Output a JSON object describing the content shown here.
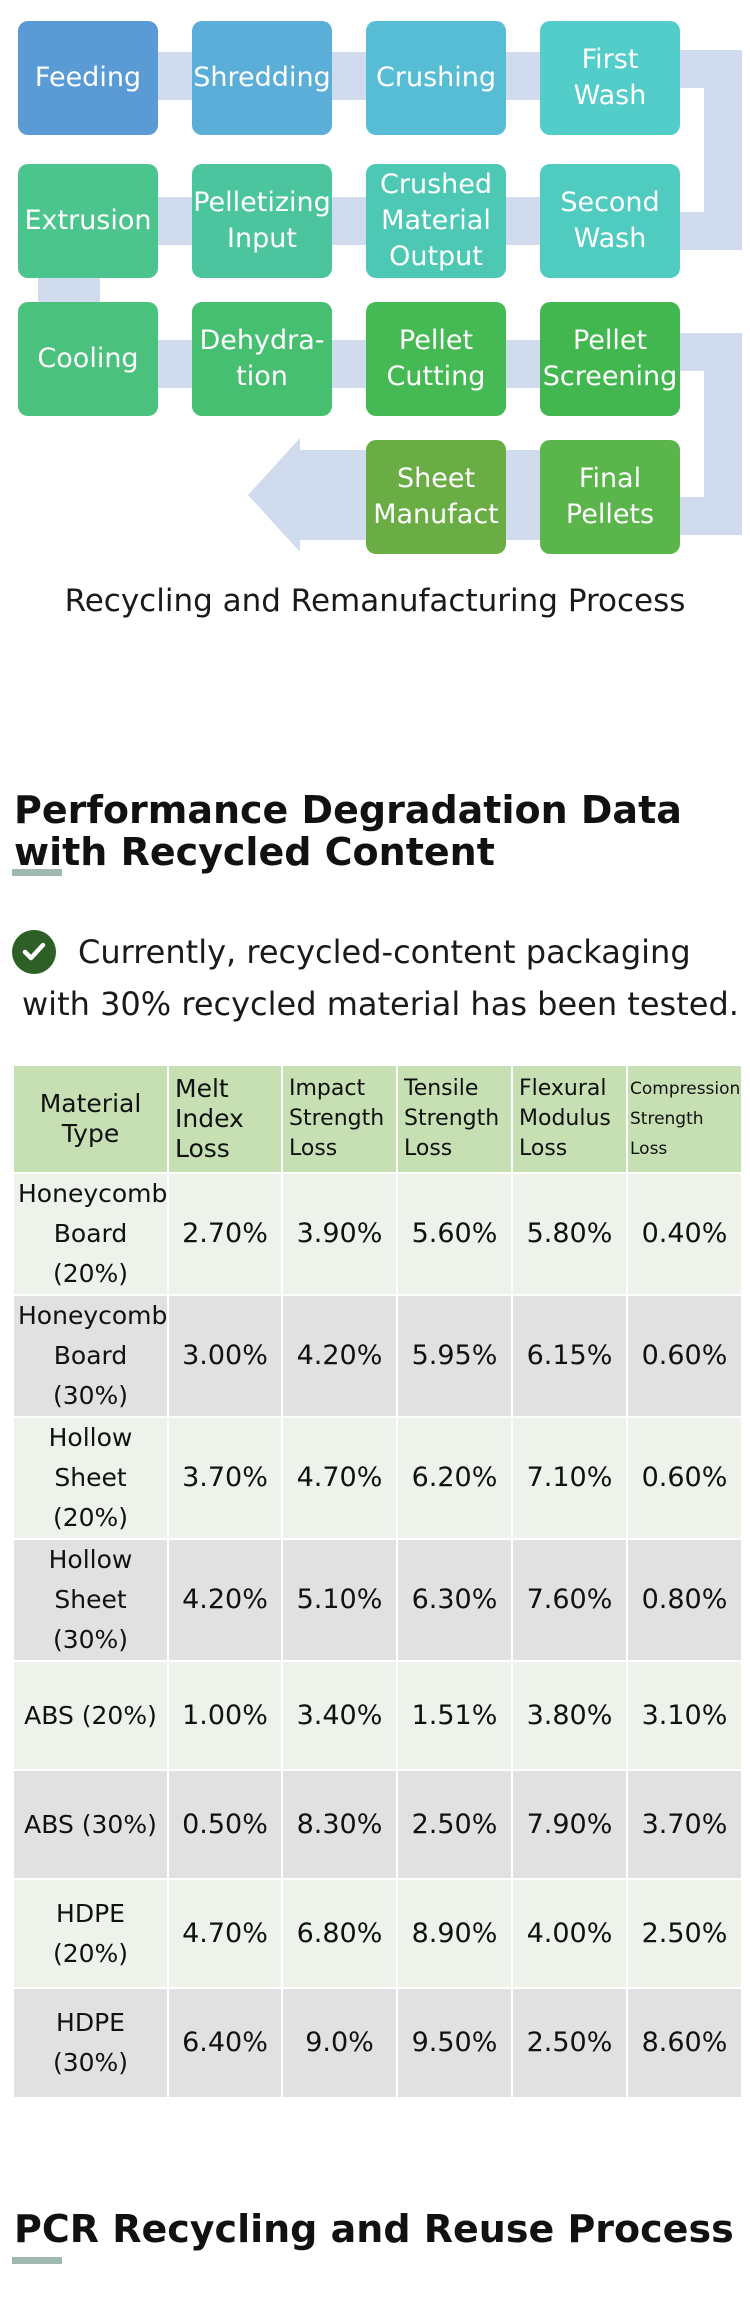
{
  "flow": {
    "steps": [
      {
        "label": "Feeding",
        "color": "#5b9bd5"
      },
      {
        "label": "Shredding",
        "color": "#5aaed8"
      },
      {
        "label": "Crushing",
        "color": "#57bdd5"
      },
      {
        "label": "First Wash",
        "color": "#52cdca"
      },
      {
        "label": "Extrusion",
        "color": "#4cc48e"
      },
      {
        "label": "Pelletizing\nInput",
        "color": "#4cc59e"
      },
      {
        "label": "Crushed\nMaterial\nOutput",
        "color": "#4dc8b4"
      },
      {
        "label": "Second\nWash",
        "color": "#4fcbc0"
      },
      {
        "label": "Cooling",
        "color": "#4ac27e"
      },
      {
        "label": "Dehydra-\ntion",
        "color": "#46bf71"
      },
      {
        "label": "Pellet\nCutting",
        "color": "#45b954"
      },
      {
        "label": "Pellet\nScreening",
        "color": "#43b74f"
      },
      {
        "label": "Sheet\nManufact",
        "color": "#6aad44"
      },
      {
        "label": "Final\nPellets",
        "color": "#5ab54a"
      }
    ],
    "connector_color": "#d0dcee",
    "caption": "Recycling and Remanufacturing Process"
  },
  "section1": {
    "title_line1": "Performance Degradation Data",
    "title_line2": "with Recycled Content"
  },
  "note": {
    "line1": "Currently, recycled-content packaging",
    "line2": "with 30% recycled material has been tested."
  },
  "table": {
    "headers": [
      "Material\nType",
      "Melt\nIndex\nLoss",
      "Impact\nStrength\nLoss",
      "Tensile\nStrength\nLoss",
      "Flexural\nModulus\nLoss",
      "Compression\nStrength\nLoss"
    ],
    "rows": [
      [
        "Honeycomb\nBoard (20%)",
        "2.70%",
        "3.90%",
        "5.60%",
        "5.80%",
        "0.40%"
      ],
      [
        "Honeycomb\nBoard (30%)",
        "3.00%",
        "4.20%",
        "5.95%",
        "6.15%",
        "0.60%"
      ],
      [
        "Hollow\nSheet (20%)",
        "3.70%",
        "4.70%",
        "6.20%",
        "7.10%",
        "0.60%"
      ],
      [
        "Hollow\nSheet (30%)",
        "4.20%",
        "5.10%",
        "6.30%",
        "7.60%",
        "0.80%"
      ],
      [
        "ABS (20%)",
        "1.00%",
        "3.40%",
        "1.51%",
        "3.80%",
        "3.10%"
      ],
      [
        "ABS (30%)",
        "0.50%",
        "8.30%",
        "2.50%",
        "7.90%",
        "3.70%"
      ],
      [
        "HDPE\n(20%)",
        "4.70%",
        "6.80%",
        "8.90%",
        "4.00%",
        "2.50%"
      ],
      [
        "HDPE\n(30%)",
        "6.40%",
        "9.0%",
        "9.50%",
        "2.50%",
        "8.60%"
      ]
    ]
  },
  "section2": {
    "title": "PCR Recycling and Reuse Process"
  }
}
